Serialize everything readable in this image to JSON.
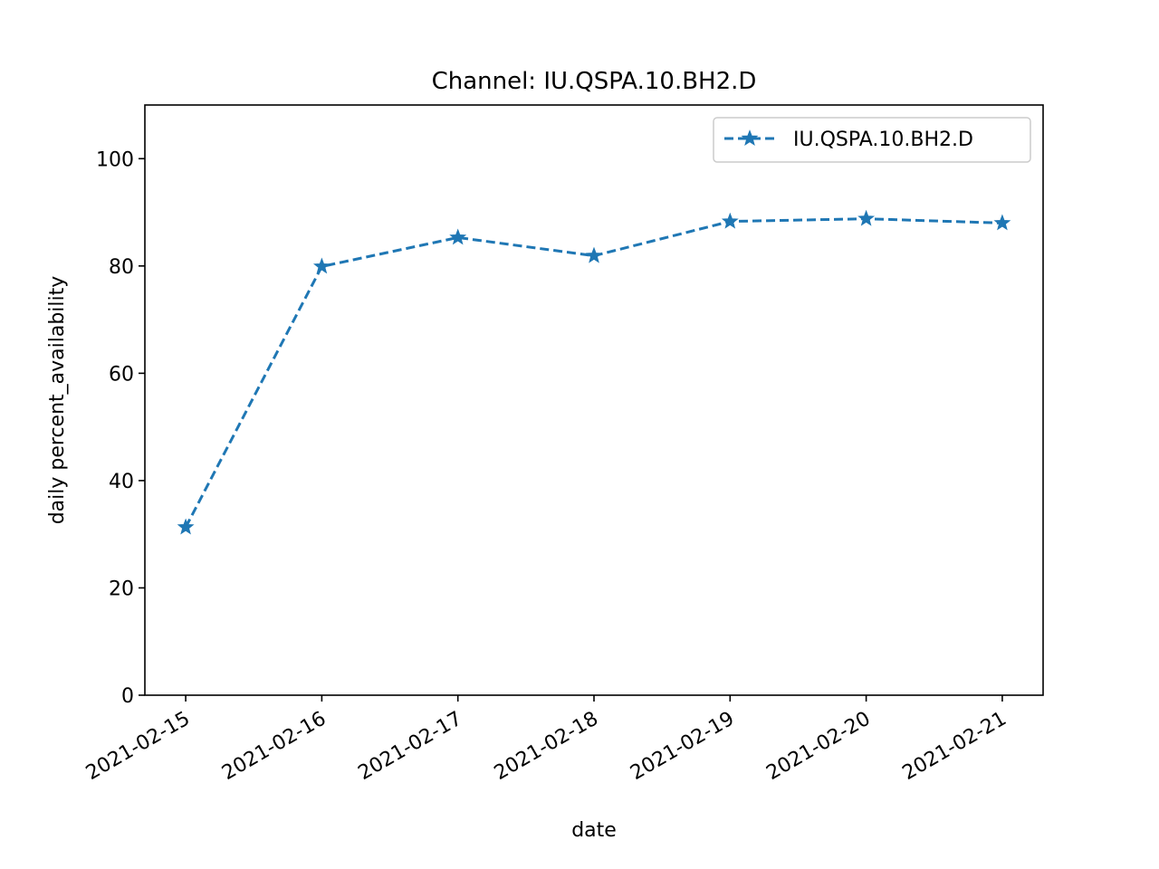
{
  "chart_data": {
    "type": "line",
    "title": "Channel: IU.QSPA.10.BH2.D",
    "xlabel": "date",
    "ylabel": "daily percent_availability",
    "x": [
      "2021-02-15",
      "2021-02-16",
      "2021-02-17",
      "2021-02-18",
      "2021-02-19",
      "2021-02-20",
      "2021-02-21"
    ],
    "series": [
      {
        "name": "IU.QSPA.10.BH2.D",
        "values": [
          31.3,
          79.9,
          85.3,
          81.9,
          88.3,
          88.8,
          88.0
        ],
        "color": "#1f77b4",
        "line_style": "dashed",
        "marker": "star"
      }
    ],
    "ylim": [
      0,
      110
    ],
    "yticks": [
      0,
      20,
      40,
      60,
      80,
      100
    ],
    "grid": false,
    "legend_position": "upper right"
  }
}
